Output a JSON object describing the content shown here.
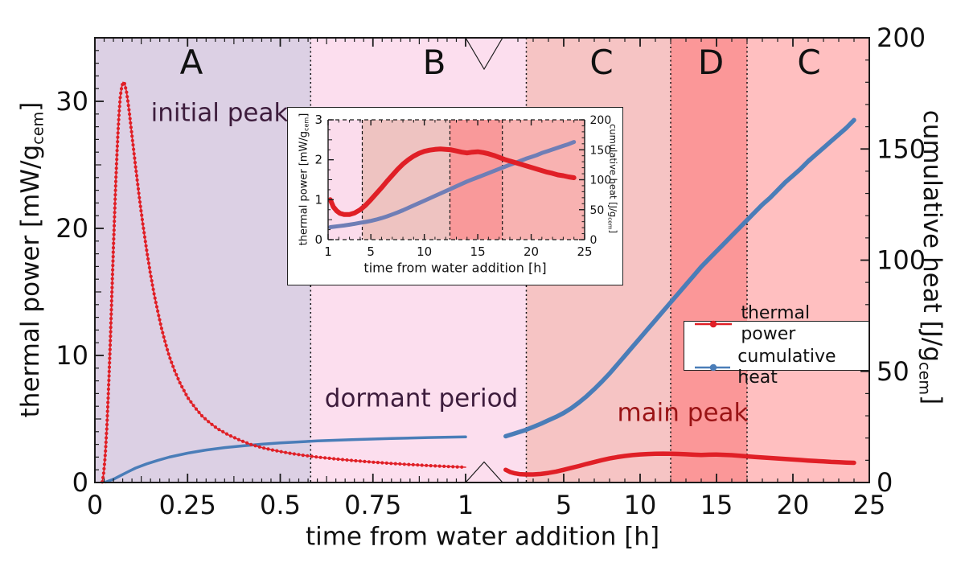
{
  "figure": {
    "background": "#ffffff",
    "annotations": {
      "initial_peak": {
        "text": "initial peak",
        "color": "#3d1c3c"
      },
      "dormant_period": {
        "text": "dormant period",
        "color": "#3d1c3c"
      },
      "main_peak": {
        "text": "main peak",
        "color": "#9a1315"
      }
    }
  },
  "legend": {
    "items": [
      {
        "label": "thermal power",
        "color": "#e01f26"
      },
      {
        "label": "cumulative heat",
        "color": "#4a7db8"
      }
    ]
  },
  "chart_data": {
    "type": "line",
    "title": "",
    "xlabel": "time from water addition [h]",
    "ylabel_left": "thermal power [mW/g_cem]",
    "ylabel_right": "cumulative heat [J/g_cem]",
    "ylabel_left_parts": {
      "pre": "thermal power [mW/g",
      "sub": "cem",
      "post": "]"
    },
    "ylabel_right_parts": {
      "pre": "cumulative heat [J/g",
      "sub": "cem",
      "post": "]"
    },
    "x_axis": {
      "broken": true,
      "segments": [
        {
          "range": [
            0,
            1
          ],
          "ticks": [
            [
              0,
              "0"
            ],
            [
              0.25,
              "0.25"
            ],
            [
              0.5,
              "0.5"
            ],
            [
              0.75,
              "0.75"
            ],
            [
              1,
              "1"
            ]
          ],
          "minor_step": 0.025
        },
        {
          "range": [
            1,
            25
          ],
          "ticks": [
            [
              5,
              "5"
            ],
            [
              10,
              "10"
            ],
            [
              15,
              "15"
            ],
            [
              20,
              "20"
            ],
            [
              25,
              "25"
            ]
          ],
          "minor_step": 1
        }
      ]
    },
    "y_left": {
      "range": [
        0,
        35
      ],
      "ticks": [
        [
          0,
          "0"
        ],
        [
          10,
          "10"
        ],
        [
          20,
          "20"
        ],
        [
          30,
          "30"
        ]
      ],
      "minor_step": 1
    },
    "y_right": {
      "range": [
        0,
        200
      ],
      "ticks": [
        [
          0,
          "0"
        ],
        [
          50,
          "50"
        ],
        [
          100,
          "100"
        ],
        [
          150,
          "150"
        ],
        [
          200,
          "200"
        ]
      ],
      "minor_step": 10
    },
    "regions": [
      {
        "label": "A",
        "x": [
          0,
          0.582
        ],
        "color": "#dcd0e4"
      },
      {
        "label": "B",
        "x": [
          0.582,
          2.55
        ],
        "color": "#fcdeee"
      },
      {
        "label": "C",
        "x": [
          2.55,
          12
        ],
        "color": "#f6c4c4"
      },
      {
        "label": "D",
        "x": [
          12,
          17
        ],
        "color": "#fb9798"
      },
      {
        "label": "C",
        "x": [
          17,
          25
        ],
        "color": "#ffbfc0"
      }
    ],
    "series": [
      {
        "name": "thermal power",
        "axis": "left",
        "color": "#e01f26",
        "marker": true,
        "points_early": [
          [
            0.02,
            0.05
          ],
          [
            0.024,
            0.8
          ],
          [
            0.028,
            2.2
          ],
          [
            0.032,
            4.2
          ],
          [
            0.036,
            6.8
          ],
          [
            0.04,
            9.8
          ],
          [
            0.044,
            13.2
          ],
          [
            0.048,
            16.8
          ],
          [
            0.052,
            20.2
          ],
          [
            0.056,
            23.4
          ],
          [
            0.06,
            26.2
          ],
          [
            0.064,
            28.5
          ],
          [
            0.068,
            30.2
          ],
          [
            0.072,
            31.1
          ],
          [
            0.076,
            31.5
          ],
          [
            0.08,
            31.4
          ],
          [
            0.085,
            30.8
          ],
          [
            0.09,
            29.8
          ],
          [
            0.095,
            28.6
          ],
          [
            0.1,
            27.3
          ],
          [
            0.11,
            24.8
          ],
          [
            0.12,
            22.4
          ],
          [
            0.13,
            20.2
          ],
          [
            0.14,
            18.2
          ],
          [
            0.15,
            16.4
          ],
          [
            0.16,
            14.8
          ],
          [
            0.17,
            13.4
          ],
          [
            0.18,
            12.1
          ],
          [
            0.19,
            11.0
          ],
          [
            0.2,
            10.0
          ],
          [
            0.215,
            8.8
          ],
          [
            0.23,
            7.8
          ],
          [
            0.25,
            6.7
          ],
          [
            0.27,
            5.9
          ],
          [
            0.29,
            5.2
          ],
          [
            0.31,
            4.7
          ],
          [
            0.33,
            4.25
          ],
          [
            0.36,
            3.75
          ],
          [
            0.39,
            3.35
          ],
          [
            0.42,
            3.0
          ],
          [
            0.45,
            2.75
          ],
          [
            0.48,
            2.55
          ],
          [
            0.52,
            2.33
          ],
          [
            0.56,
            2.15
          ],
          [
            0.6,
            2.0
          ],
          [
            0.65,
            1.85
          ],
          [
            0.7,
            1.72
          ],
          [
            0.75,
            1.6
          ],
          [
            0.8,
            1.5
          ],
          [
            0.85,
            1.41
          ],
          [
            0.9,
            1.33
          ],
          [
            0.95,
            1.26
          ],
          [
            1.0,
            1.2
          ]
        ],
        "points_late": [
          [
            1.2,
            1.0
          ],
          [
            1.5,
            0.82
          ],
          [
            1.8,
            0.72
          ],
          [
            2.1,
            0.66
          ],
          [
            2.5,
            0.63
          ],
          [
            3,
            0.63
          ],
          [
            3.5,
            0.67
          ],
          [
            4,
            0.75
          ],
          [
            4.5,
            0.86
          ],
          [
            5,
            1.0
          ],
          [
            5.5,
            1.15
          ],
          [
            6,
            1.3
          ],
          [
            6.5,
            1.46
          ],
          [
            7,
            1.61
          ],
          [
            7.5,
            1.76
          ],
          [
            8,
            1.89
          ],
          [
            8.5,
            2.0
          ],
          [
            9,
            2.09
          ],
          [
            9.5,
            2.16
          ],
          [
            10,
            2.21
          ],
          [
            10.5,
            2.24
          ],
          [
            11,
            2.26
          ],
          [
            11.5,
            2.27
          ],
          [
            12,
            2.26
          ],
          [
            12.5,
            2.25
          ],
          [
            13,
            2.22
          ],
          [
            13.5,
            2.19
          ],
          [
            14,
            2.17
          ],
          [
            14.5,
            2.19
          ],
          [
            15,
            2.2
          ],
          [
            15.5,
            2.18
          ],
          [
            16,
            2.15
          ],
          [
            16.5,
            2.11
          ],
          [
            17,
            2.06
          ],
          [
            17.5,
            2.01
          ],
          [
            18,
            1.97
          ],
          [
            18.5,
            1.93
          ],
          [
            19,
            1.89
          ],
          [
            19.5,
            1.85
          ],
          [
            20,
            1.81
          ],
          [
            20.5,
            1.77
          ],
          [
            21,
            1.73
          ],
          [
            21.5,
            1.69
          ],
          [
            22,
            1.66
          ],
          [
            22.5,
            1.62
          ],
          [
            23,
            1.6
          ],
          [
            23.5,
            1.57
          ],
          [
            24,
            1.55
          ]
        ]
      },
      {
        "name": "cumulative heat",
        "axis": "right",
        "color": "#4a7db8",
        "marker": false,
        "points_early": [
          [
            0.03,
            0.2
          ],
          [
            0.05,
            1.5
          ],
          [
            0.07,
            3.2
          ],
          [
            0.09,
            4.9
          ],
          [
            0.11,
            6.5
          ],
          [
            0.14,
            8.4
          ],
          [
            0.17,
            10.0
          ],
          [
            0.2,
            11.4
          ],
          [
            0.25,
            13.2
          ],
          [
            0.3,
            14.6
          ],
          [
            0.35,
            15.7
          ],
          [
            0.4,
            16.5
          ],
          [
            0.45,
            17.2
          ],
          [
            0.5,
            17.8
          ],
          [
            0.6,
            18.7
          ],
          [
            0.7,
            19.3
          ],
          [
            0.8,
            19.8
          ],
          [
            0.9,
            20.2
          ],
          [
            1.0,
            20.5
          ]
        ],
        "points_late": [
          [
            1.2,
            20.8
          ],
          [
            2,
            22.5
          ],
          [
            2.5,
            23.6
          ],
          [
            3,
            25
          ],
          [
            3.5,
            26.4
          ],
          [
            4,
            28
          ],
          [
            4.5,
            29.5
          ],
          [
            5,
            31.3
          ],
          [
            5.5,
            33.4
          ],
          [
            6,
            36
          ],
          [
            6.5,
            38.8
          ],
          [
            7,
            42
          ],
          [
            7.5,
            45.4
          ],
          [
            8,
            49
          ],
          [
            8.5,
            53
          ],
          [
            9,
            57
          ],
          [
            9.5,
            61
          ],
          [
            10,
            65
          ],
          [
            10.5,
            69
          ],
          [
            11,
            73
          ],
          [
            11.5,
            77
          ],
          [
            12,
            81
          ],
          [
            12.5,
            85
          ],
          [
            13,
            89
          ],
          [
            13.5,
            93
          ],
          [
            14,
            97
          ],
          [
            14.5,
            100.5
          ],
          [
            15,
            104
          ],
          [
            15.5,
            107.5
          ],
          [
            16,
            111
          ],
          [
            16.5,
            114.5
          ],
          [
            17,
            118
          ],
          [
            17.5,
            121.5
          ],
          [
            18,
            125
          ],
          [
            18.5,
            128
          ],
          [
            19,
            131.5
          ],
          [
            19.5,
            135
          ],
          [
            20,
            138
          ],
          [
            20.5,
            141
          ],
          [
            21,
            144.5
          ],
          [
            21.5,
            147.5
          ],
          [
            22,
            150.5
          ],
          [
            22.5,
            153.5
          ],
          [
            23,
            156.5
          ],
          [
            23.5,
            159.5
          ],
          [
            24,
            163
          ]
        ]
      }
    ],
    "inset": {
      "x_ticks": [
        [
          1,
          "1"
        ],
        [
          5,
          "5"
        ],
        [
          10,
          "10"
        ],
        [
          15,
          "15"
        ],
        [
          20,
          "20"
        ],
        [
          25,
          "25"
        ]
      ],
      "y_left_ticks": [
        [
          0,
          "0"
        ],
        [
          1,
          "1"
        ],
        [
          2,
          "2"
        ],
        [
          3,
          "3"
        ]
      ],
      "y_right_ticks": [
        [
          0,
          "0"
        ],
        [
          50,
          "50"
        ],
        [
          100,
          "100"
        ],
        [
          150,
          "150"
        ],
        [
          200,
          "200"
        ]
      ],
      "y_left_range": [
        0,
        3
      ],
      "y_right_range": [
        0,
        200
      ],
      "x_range": [
        1,
        25
      ],
      "thermal_power_color": "#e01f26",
      "cumulative_heat_color": "#6f7eb6",
      "regions": [
        {
          "x": [
            1,
            4.2
          ],
          "color": "#fbdcec"
        },
        {
          "x": [
            4.2,
            12.4
          ],
          "color": "#eec3c1"
        },
        {
          "x": [
            12.4,
            17.3
          ],
          "color": "#f9999a"
        },
        {
          "x": [
            17.3,
            25
          ],
          "color": "#f8b2b1"
        }
      ]
    }
  }
}
